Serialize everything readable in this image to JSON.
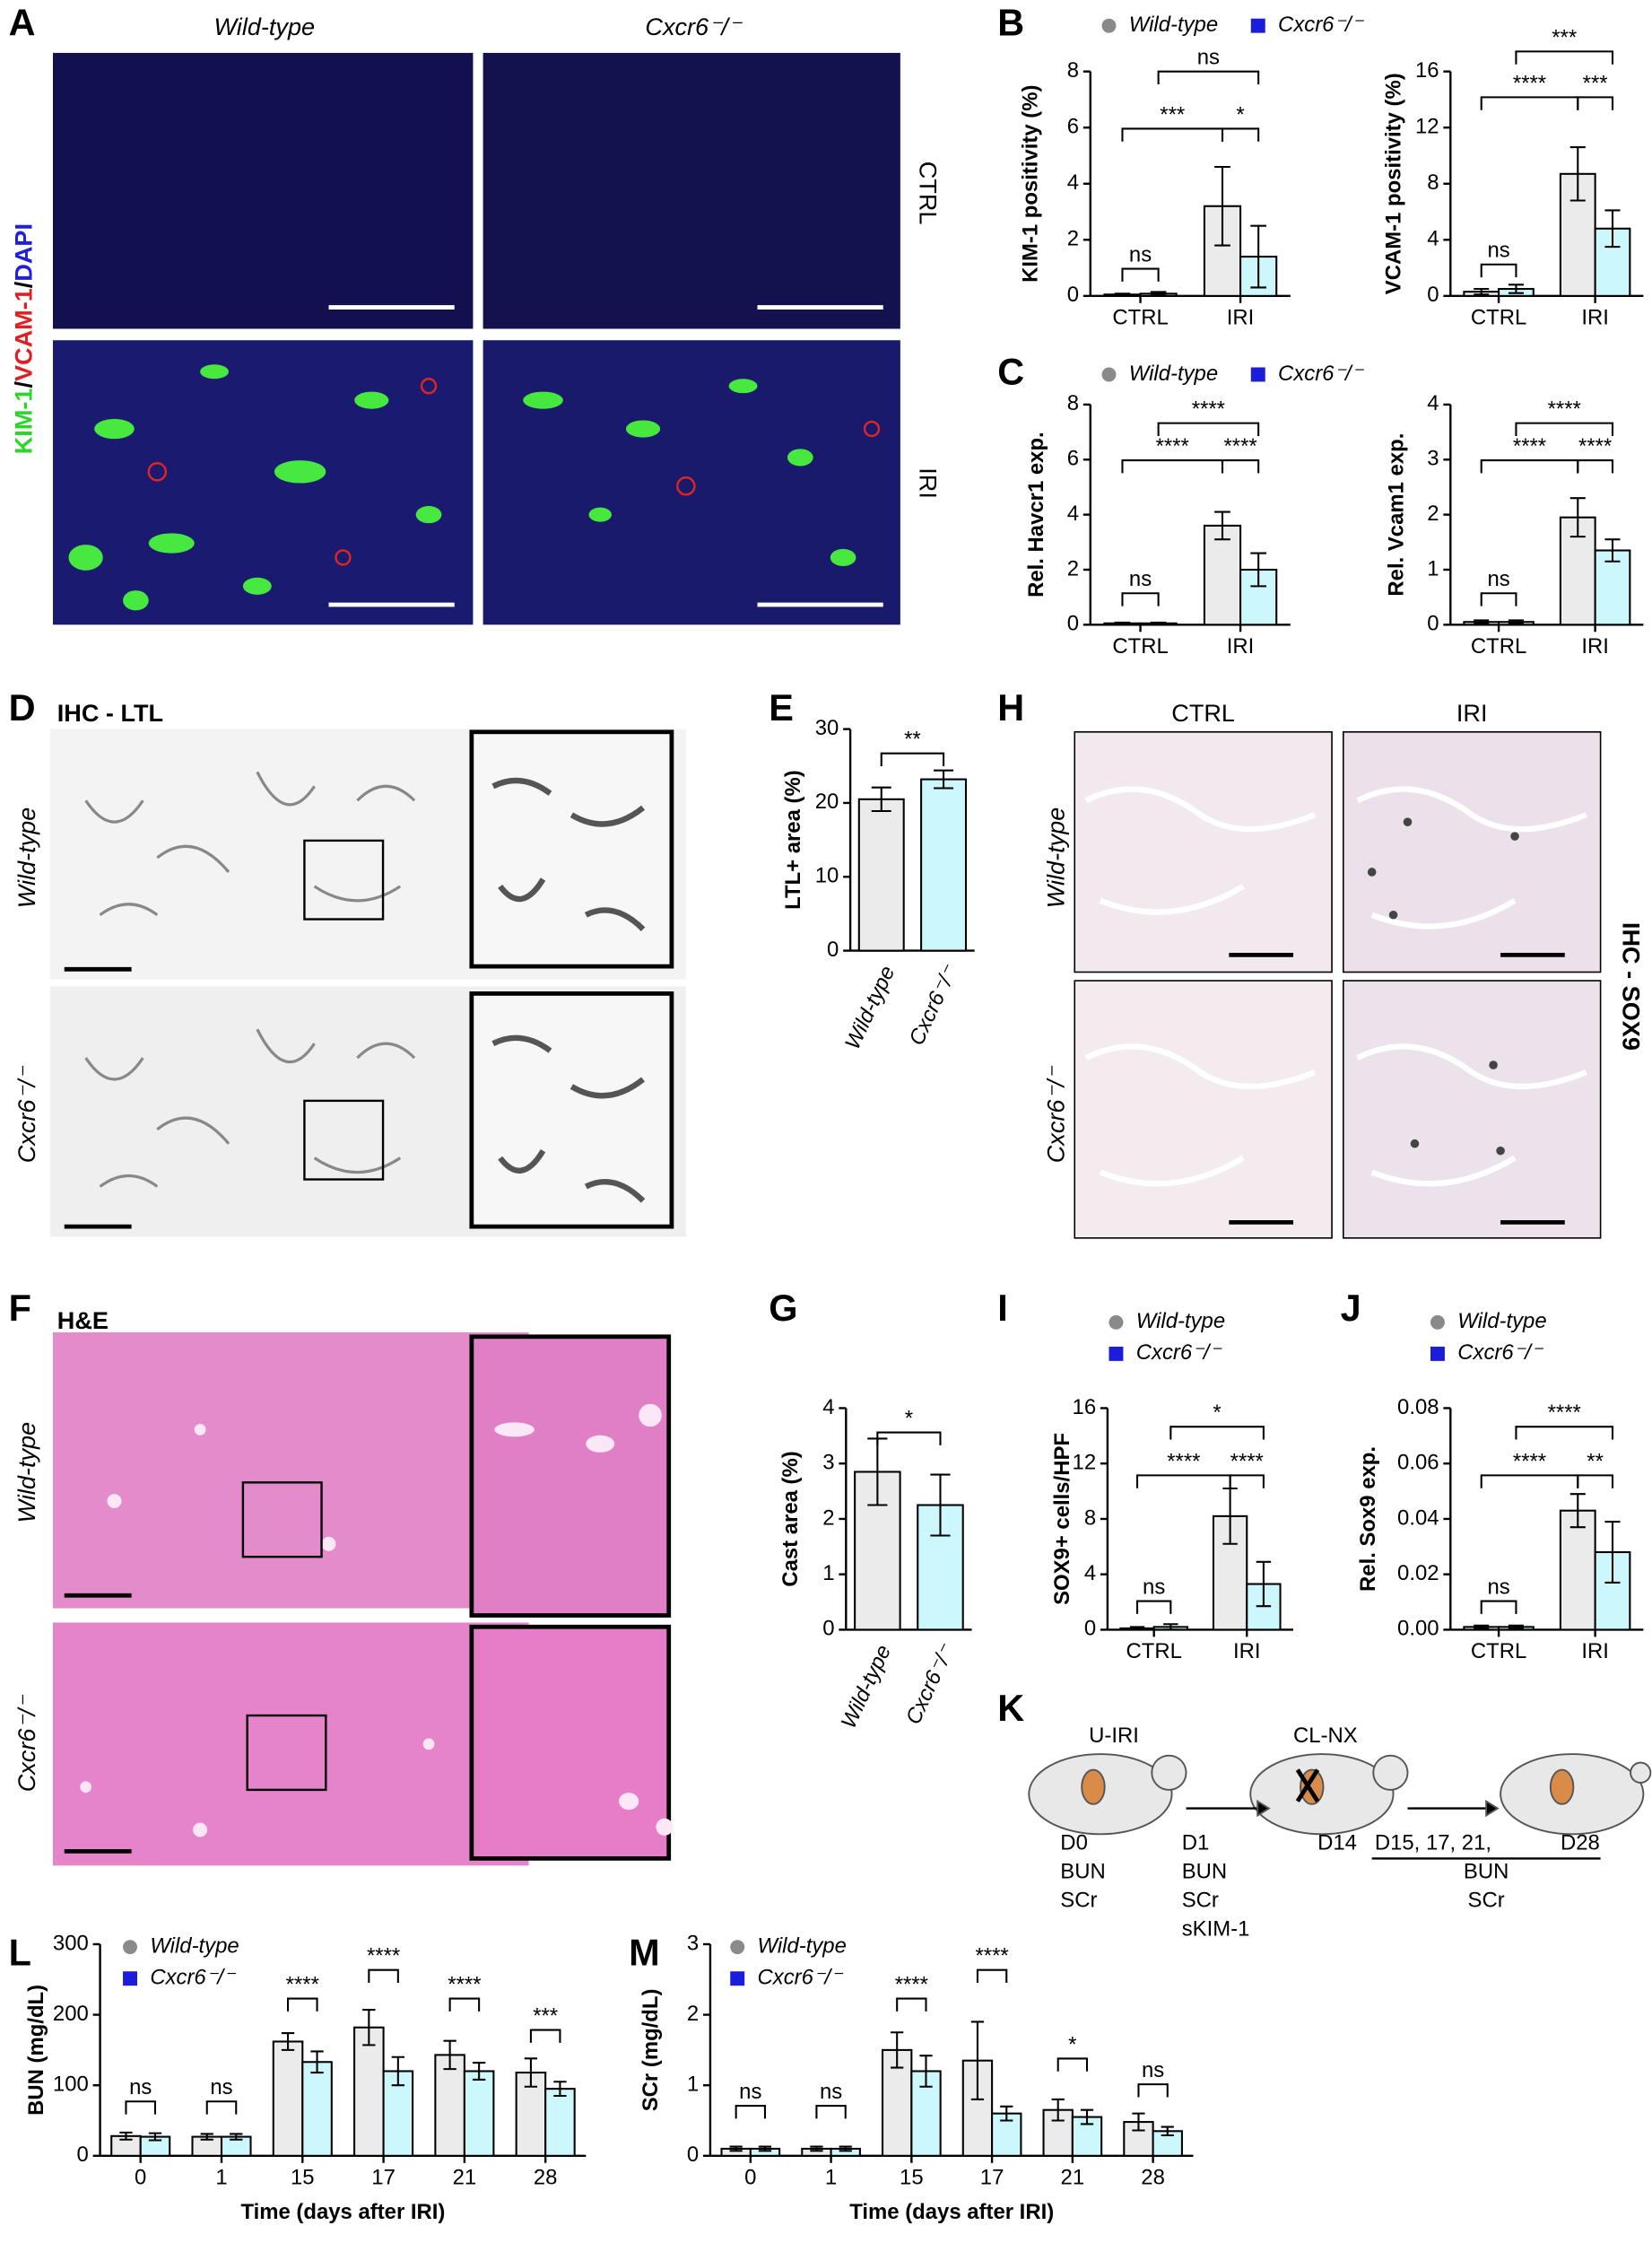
{
  "panel_labels": [
    "A",
    "B",
    "C",
    "D",
    "E",
    "H",
    "F",
    "G",
    "I",
    "J",
    "K",
    "L",
    "M"
  ],
  "images": {
    "a_cols": [
      "Wild-type",
      "Cxcr6⁻/⁻"
    ],
    "a_rows": [
      "CTRL",
      "IRI"
    ],
    "a_stain": [
      "KIM-1",
      "/",
      "VCAM-1",
      "/",
      "DAPI"
    ],
    "d_title": "IHC - LTL",
    "d_rows": [
      "Wild-type",
      "Cxcr6⁻/⁻"
    ],
    "h_cols": [
      "CTRL",
      "IRI"
    ],
    "h_rows": [
      "Wild-type",
      "Cxcr6⁻/⁻"
    ],
    "h_title": "IHC - SOX9",
    "f_title": "H&E",
    "f_rows": [
      "Wild-type",
      "Cxcr6⁻/⁻"
    ]
  },
  "diagram_k": {
    "surgery1": "U-IRI",
    "surgery2": "CL-NX",
    "d0": [
      "D0",
      "BUN",
      "SCr"
    ],
    "d1": [
      "D1",
      "BUN",
      "SCr",
      "sKIM-1"
    ],
    "d14": "D14",
    "d15": "D15, 17, 21,",
    "d28": "D28",
    "late": [
      "BUN",
      "SCr"
    ]
  },
  "chart_data": [
    {
      "type": "bar",
      "ylabel": "KIM-1 positivity (%)",
      "categories": [
        "CTRL",
        "IRI"
      ],
      "series": [
        {
          "name": "Wild-type",
          "color": "#ebebeb",
          "marker_color": "#8a8a8a",
          "values": [
            0.05,
            3.2
          ],
          "errors": [
            0.03,
            1.4
          ]
        },
        {
          "name": "Cxcr6⁻/⁻",
          "color": "#ccf7fc",
          "marker_color": "#1c1cdc",
          "values": [
            0.08,
            1.4
          ],
          "errors": [
            0.06,
            1.1
          ]
        }
      ],
      "ylim": [
        0,
        8
      ],
      "yticks": [
        0,
        2,
        4,
        6,
        8
      ],
      "annotations": [
        "ns",
        "***",
        "*",
        "ns"
      ]
    },
    {
      "type": "bar",
      "ylabel": "VCAM-1 positivity (%)",
      "categories": [
        "CTRL",
        "IRI"
      ],
      "series": [
        {
          "color": "#ebebeb",
          "values": [
            0.3,
            8.7
          ],
          "errors": [
            0.2,
            1.9
          ]
        },
        {
          "color": "#ccf7fc",
          "values": [
            0.5,
            4.8
          ],
          "errors": [
            0.3,
            1.3
          ]
        }
      ],
      "ylim": [
        0,
        16
      ],
      "yticks": [
        0,
        4,
        8,
        12,
        16
      ],
      "annotations": [
        "ns",
        "****",
        "***",
        "***"
      ]
    },
    {
      "type": "bar",
      "ylabel": "Rel. Havcr1 exp.",
      "categories": [
        "CTRL",
        "IRI"
      ],
      "series": [
        {
          "name": "Wild-type",
          "color": "#ebebeb",
          "marker_color": "#8a8a8a",
          "values": [
            0.05,
            3.6
          ],
          "errors": [
            0.03,
            0.5
          ]
        },
        {
          "name": "Cxcr6⁻/⁻",
          "color": "#ccf7fc",
          "marker_color": "#1c1cdc",
          "values": [
            0.05,
            2.0
          ],
          "errors": [
            0.03,
            0.6
          ]
        }
      ],
      "ylim": [
        0,
        8
      ],
      "yticks": [
        0,
        2,
        4,
        6,
        8
      ],
      "annotations": [
        "ns",
        "****",
        "****",
        "****"
      ]
    },
    {
      "type": "bar",
      "ylabel": "Rel. Vcam1 exp.",
      "categories": [
        "CTRL",
        "IRI"
      ],
      "series": [
        {
          "color": "#ebebeb",
          "values": [
            0.05,
            1.95
          ],
          "errors": [
            0.03,
            0.35
          ]
        },
        {
          "color": "#ccf7fc",
          "values": [
            0.05,
            1.35
          ],
          "errors": [
            0.03,
            0.2
          ]
        }
      ],
      "ylim": [
        0,
        4
      ],
      "yticks": [
        0,
        1,
        2,
        3,
        4
      ],
      "annotations": [
        "ns",
        "****",
        "****",
        "****"
      ]
    },
    {
      "type": "bar",
      "ylabel": "LTL+ area (%)",
      "categories": [
        "Wild-type",
        "Cxcr6⁻/⁻"
      ],
      "colors": [
        "#ebebeb",
        "#ccf7fc"
      ],
      "series": [
        {
          "values": [
            20.5,
            23.2
          ],
          "errors": [
            1.6,
            1.2
          ]
        }
      ],
      "ylim": [
        0,
        30
      ],
      "yticks": [
        0,
        10,
        20,
        30
      ],
      "annotations": [
        "**"
      ]
    },
    {
      "type": "bar",
      "ylabel": "Cast area (%)",
      "categories": [
        "Wild-type",
        "Cxcr6⁻/⁻"
      ],
      "colors": [
        "#ebebeb",
        "#ccf7fc"
      ],
      "series": [
        {
          "values": [
            2.85,
            2.25
          ],
          "errors": [
            0.6,
            0.55
          ]
        }
      ],
      "ylim": [
        0,
        4
      ],
      "yticks": [
        0,
        1,
        2,
        3,
        4
      ],
      "annotations": [
        "*"
      ]
    },
    {
      "type": "bar",
      "ylabel": "SOX9+ cells/HPF",
      "categories": [
        "CTRL",
        "IRI"
      ],
      "series": [
        {
          "name": "Wild-type",
          "color": "#ebebeb",
          "marker_color": "#8a8a8a",
          "values": [
            0.1,
            8.2
          ],
          "errors": [
            0.1,
            2.0
          ]
        },
        {
          "name": "Cxcr6⁻/⁻",
          "color": "#ccf7fc",
          "marker_color": "#1c1cdc",
          "values": [
            0.2,
            3.3
          ],
          "errors": [
            0.2,
            1.6
          ]
        }
      ],
      "ylim": [
        0,
        16
      ],
      "yticks": [
        0,
        4,
        8,
        12,
        16
      ],
      "annotations": [
        "ns",
        "****",
        "****",
        "*"
      ]
    },
    {
      "type": "bar",
      "ylabel": "Rel. Sox9 exp.",
      "categories": [
        "CTRL",
        "IRI"
      ],
      "series": [
        {
          "name": "Wild-type",
          "color": "#ebebeb",
          "marker_color": "#8a8a8a",
          "values": [
            0.001,
            0.043
          ],
          "errors": [
            0.0005,
            0.006
          ]
        },
        {
          "name": "Cxcr6⁻/⁻",
          "color": "#ccf7fc",
          "marker_color": "#1c1cdc",
          "values": [
            0.001,
            0.028
          ],
          "errors": [
            0.0005,
            0.011
          ]
        }
      ],
      "ylim": [
        0,
        0.08
      ],
      "yticks": [
        {
          "value": 0,
          "label": "0.00"
        },
        {
          "value": 0.02,
          "label": "0.02"
        },
        {
          "value": 0.04,
          "label": "0.04"
        },
        {
          "value": 0.06,
          "label": "0.06"
        },
        {
          "value": 0.08,
          "label": "0.08"
        }
      ],
      "annotations": [
        "ns",
        "****",
        "**",
        "****"
      ]
    },
    {
      "type": "bar",
      "ylabel": "BUN (mg/dL)",
      "xlabel": "Time (days after IRI)",
      "categories": [
        "0",
        "1",
        "15",
        "17",
        "21",
        "28"
      ],
      "series": [
        {
          "name": "Wild-type",
          "color": "#ebebeb",
          "marker_color": "#8a8a8a",
          "values": [
            28,
            27,
            162,
            182,
            143,
            118
          ],
          "errors": [
            5,
            4,
            12,
            25,
            20,
            20
          ]
        },
        {
          "name": "Cxcr6⁻/⁻",
          "color": "#ccf7fc",
          "marker_color": "#1c1cdc",
          "values": [
            27,
            27,
            133,
            120,
            120,
            95
          ],
          "errors": [
            5,
            4,
            15,
            20,
            12,
            10
          ]
        }
      ],
      "ylim": [
        0,
        300
      ],
      "yticks": [
        0,
        100,
        200,
        300
      ],
      "annotations": [
        "ns",
        "ns",
        "****",
        "****",
        "****",
        "***"
      ]
    },
    {
      "type": "bar",
      "ylabel": "SCr (mg/dL)",
      "xlabel": "Time (days after IRI)",
      "categories": [
        "0",
        "1",
        "15",
        "17",
        "21",
        "28"
      ],
      "series": [
        {
          "name": "Wild-type",
          "color": "#ebebeb",
          "marker_color": "#8a8a8a",
          "values": [
            0.1,
            0.1,
            1.5,
            1.35,
            0.65,
            0.48
          ],
          "errors": [
            0.03,
            0.03,
            0.25,
            0.55,
            0.15,
            0.12
          ]
        },
        {
          "name": "Cxcr6⁻/⁻",
          "color": "#ccf7fc",
          "marker_color": "#1c1cdc",
          "values": [
            0.1,
            0.1,
            1.2,
            0.6,
            0.55,
            0.35
          ],
          "errors": [
            0.03,
            0.03,
            0.22,
            0.1,
            0.1,
            0.06
          ]
        }
      ],
      "ylim": [
        0,
        3
      ],
      "yticks": [
        0,
        1,
        2,
        3
      ],
      "annotations": [
        "ns",
        "ns",
        "****",
        "****",
        "*",
        "ns"
      ]
    }
  ]
}
